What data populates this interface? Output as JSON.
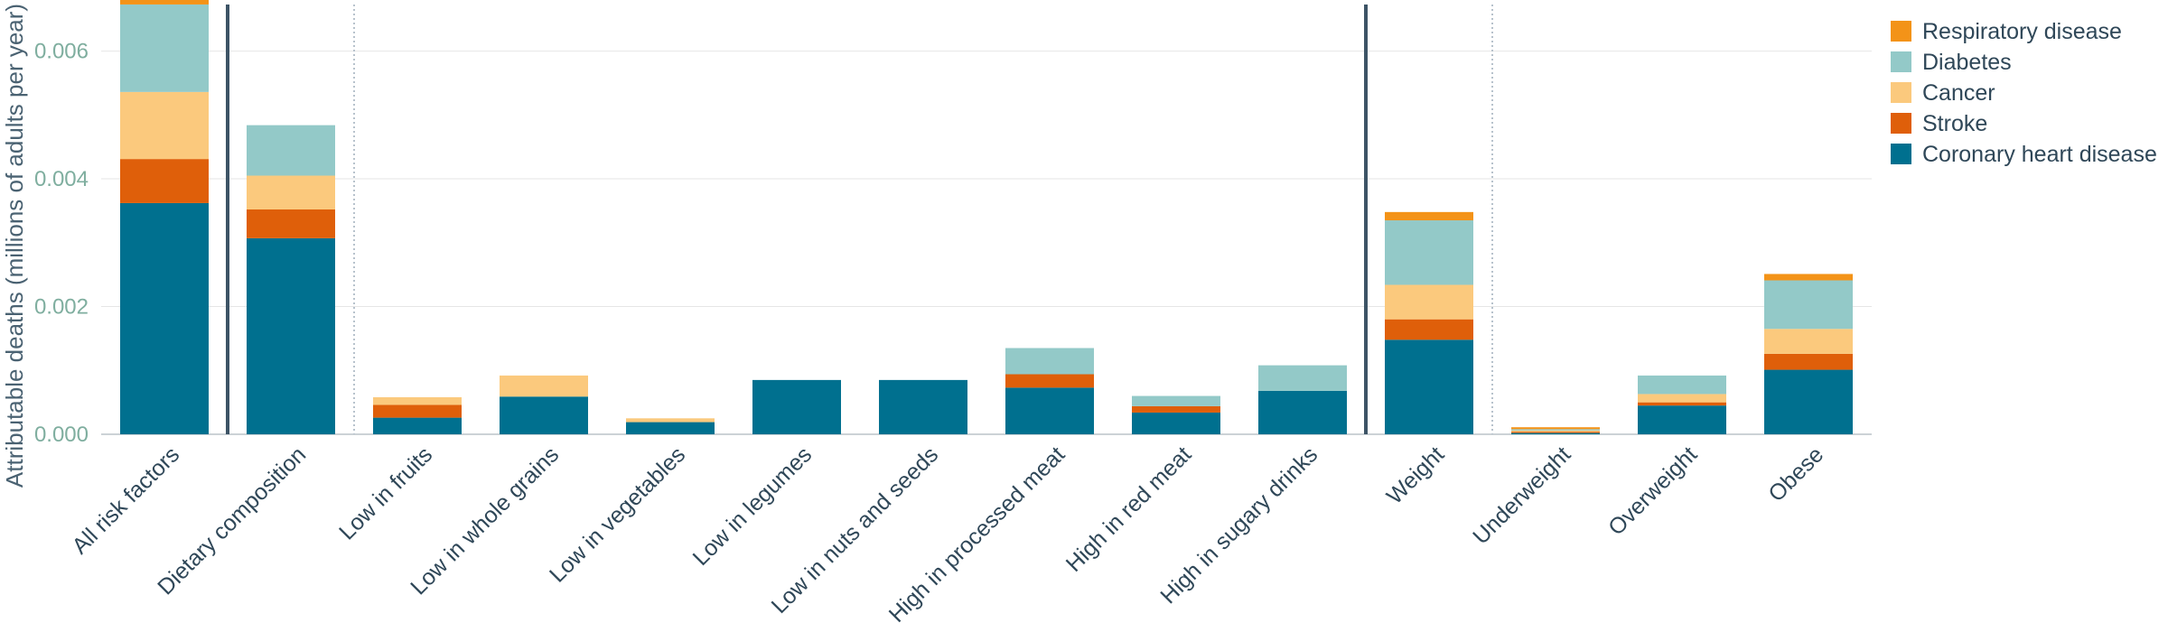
{
  "chart_data": {
    "type": "bar",
    "stacked": true,
    "ylabel": "Attributable deaths (millions of adults per year)",
    "xlabel": "",
    "ylim": [
      0,
      0.0068
    ],
    "yticks": [
      "0.000",
      "0.002",
      "0.004",
      "0.006"
    ],
    "grid": true,
    "legend_position": "right",
    "categories": [
      "All risk factors",
      "Dietary composition",
      "Low in fruits",
      "Low in whole grains",
      "Low in vegetables",
      "Low in legumes",
      "Low in nuts and seeds",
      "High in processed meat",
      "High in red meat",
      "High in sugary drinks",
      "Weight",
      "Underweight",
      "Overweight",
      "Obese"
    ],
    "series": [
      {
        "name": "Coronary heart disease",
        "color": "#00708f",
        "values": [
          0.00362,
          0.00307,
          0.00026,
          0.00059,
          0.00019,
          0.00085,
          0.00085,
          0.00073,
          0.00034,
          0.00068,
          0.00148,
          2e-05,
          0.00045,
          0.00101
        ]
      },
      {
        "name": "Stroke",
        "color": "#df5f0a",
        "values": [
          0.00069,
          0.00045,
          0.0002,
          0.0,
          0.0,
          0.0,
          0.0,
          0.00021,
          0.0001,
          0.0,
          0.00032,
          2e-05,
          5e-05,
          0.00025
        ]
      },
      {
        "name": "Cancer",
        "color": "#fbc97d",
        "values": [
          0.00105,
          0.00053,
          0.00012,
          0.00033,
          6e-05,
          0.0,
          0.0,
          0.0,
          0.0,
          0.0,
          0.00054,
          2e-05,
          0.00013,
          0.00039
        ]
      },
      {
        "name": "Diabetes",
        "color": "#93c9c8",
        "values": [
          0.00137,
          0.00079,
          0.0,
          0.0,
          0.0,
          0.0,
          0.0,
          0.00041,
          0.00016,
          0.0004,
          0.00101,
          2e-05,
          0.00029,
          0.00076
        ]
      },
      {
        "name": "Respiratory disease",
        "color": "#f39318",
        "values": [
          0.00013,
          0.0,
          0.0,
          0.0,
          0.0,
          0.0,
          0.0,
          0.0,
          0.0,
          0.0,
          0.00013,
          3e-05,
          0.0,
          0.0001
        ]
      }
    ],
    "legend_order": [
      "Respiratory disease",
      "Diabetes",
      "Cancer",
      "Stroke",
      "Coronary heart disease"
    ],
    "separators": [
      {
        "after_index": 0,
        "style": "solid"
      },
      {
        "after_index": 1,
        "style": "dotted"
      },
      {
        "after_index": 9,
        "style": "solid"
      },
      {
        "after_index": 10,
        "style": "dotted"
      }
    ]
  }
}
